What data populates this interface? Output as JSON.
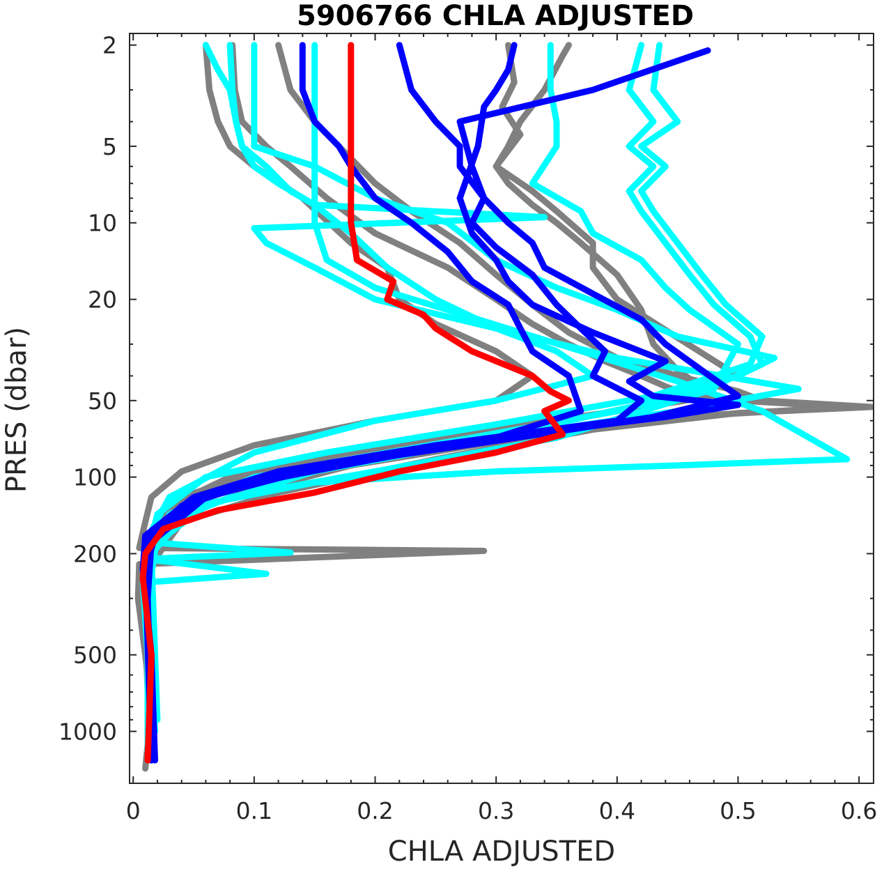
{
  "chart_data": {
    "type": "line",
    "title": "5906766  CHLA ADJUSTED",
    "xlabel": "CHLA ADJUSTED",
    "ylabel": "PRES (dbar)",
    "xlim": [
      -0.003,
      0.612
    ],
    "ylim": [
      1.8,
      1600
    ],
    "y_scale": "log",
    "y_reversed": true,
    "xticks": [
      0,
      0.1,
      0.2,
      0.3,
      0.4,
      0.5,
      0.6
    ],
    "xtick_labels": [
      "0",
      "0.1",
      "0.2",
      "0.3",
      "0.4",
      "0.5",
      "0.6"
    ],
    "yticks": [
      2,
      5,
      10,
      20,
      50,
      100,
      200,
      500,
      1000
    ],
    "ytick_labels": [
      "2",
      "5",
      "10",
      "20",
      "50",
      "100",
      "200",
      "500",
      "1000"
    ],
    "grid": false,
    "series": [
      {
        "color": "#808080",
        "x": [
          0.06,
          0.063,
          0.07,
          0.08,
          0.1,
          0.14,
          0.18,
          0.21,
          0.22,
          0.25,
          0.3,
          0.33,
          0.3,
          0.2,
          0.1,
          0.04,
          0.015,
          0.01,
          0.005,
          0.29,
          0.005,
          0.004,
          0.01,
          0.015,
          0.01
        ],
        "y": [
          2,
          3,
          4,
          5,
          6,
          8,
          12,
          15,
          20,
          25,
          32,
          40,
          50,
          60,
          75,
          95,
          120,
          150,
          190,
          195,
          220,
          300,
          500,
          800,
          1400
        ]
      },
      {
        "color": "#808080",
        "x": [
          0.082,
          0.084,
          0.09,
          0.11,
          0.13,
          0.16,
          0.2,
          0.26,
          0.3,
          0.33,
          0.36,
          0.39,
          0.42,
          0.44,
          0.46,
          0.5,
          0.59,
          0.45,
          0.32,
          0.18,
          0.08,
          0.03,
          0.012,
          0.01,
          0.014
        ],
        "y": [
          2,
          3,
          4,
          5,
          6,
          8,
          11,
          15,
          20,
          25,
          30,
          35,
          40,
          44,
          48,
          50,
          53,
          58,
          70,
          90,
          120,
          150,
          200,
          400,
          1200
        ]
      },
      {
        "color": "#808080",
        "x": [
          0.12,
          0.13,
          0.15,
          0.17,
          0.2,
          0.23,
          0.27,
          0.3,
          0.33,
          0.36,
          0.4,
          0.45,
          0.5,
          0.52,
          0.61,
          0.5,
          0.38,
          0.25,
          0.12,
          0.04,
          0.015,
          0.015
        ],
        "y": [
          2,
          3,
          4,
          5,
          7,
          9,
          12,
          16,
          21,
          27,
          34,
          40,
          46,
          50,
          53,
          56,
          65,
          85,
          115,
          150,
          220,
          1300
        ]
      },
      {
        "color": "#808080",
        "x": [
          0.31,
          0.315,
          0.305,
          0.32,
          0.3,
          0.33,
          0.35,
          0.38,
          0.38,
          0.4,
          0.5,
          0.4,
          0.25,
          0.12,
          0.04,
          0.012,
          0.014
        ],
        "y": [
          2,
          2.8,
          3.5,
          4.5,
          6,
          7.5,
          9,
          12,
          15,
          20,
          40,
          55,
          70,
          90,
          120,
          200,
          1200
        ]
      },
      {
        "color": "#808080",
        "x": [
          0.36,
          0.355,
          0.34,
          0.32,
          0.31,
          0.3,
          0.31,
          0.33,
          0.35,
          0.37,
          0.4,
          0.42,
          0.43,
          0.45,
          0.48,
          0.4,
          0.3,
          0.18,
          0.08,
          0.03,
          0.012,
          0.014
        ],
        "y": [
          2,
          2.2,
          3,
          4,
          5,
          6,
          7,
          8.5,
          10,
          12,
          16,
          22,
          30,
          38,
          48,
          55,
          65,
          80,
          100,
          130,
          200,
          1100
        ]
      },
      {
        "color": "#00ffff",
        "x": [
          0.06,
          0.07,
          0.08,
          0.085,
          0.09,
          0.1,
          0.12,
          0.15,
          0.18,
          0.21,
          0.25,
          0.3,
          0.35,
          0.38,
          0.3,
          0.2,
          0.1,
          0.03,
          0.01,
          0.13,
          0.01,
          0.11,
          0.008,
          0.012,
          0.015
        ],
        "y": [
          2,
          2.5,
          3,
          4,
          5,
          6,
          7,
          8.5,
          11,
          15,
          20,
          26,
          32,
          40,
          50,
          60,
          80,
          120,
          180,
          198,
          210,
          240,
          260,
          500,
          1300
        ]
      },
      {
        "color": "#00ffff",
        "x": [
          0.08,
          0.082,
          0.085,
          0.09,
          0.11,
          0.13,
          0.15,
          0.34,
          0.1,
          0.11,
          0.15,
          0.2,
          0.3,
          0.4,
          0.55,
          0.45,
          0.3,
          0.15,
          0.06,
          0.02,
          0.01,
          0.015
        ],
        "y": [
          2,
          3,
          4,
          5,
          6,
          7.5,
          8.5,
          9.5,
          10.5,
          12,
          15,
          20,
          26,
          34,
          45,
          55,
          70,
          95,
          130,
          180,
          250,
          1200
        ]
      },
      {
        "color": "#00ffff",
        "x": [
          0.1,
          0.1,
          0.1,
          0.1,
          0.15,
          0.2,
          0.26,
          0.3,
          0.35,
          0.4,
          0.45,
          0.53,
          0.5,
          0.4,
          0.28,
          0.15,
          0.06,
          0.02,
          0.012,
          0.018
        ],
        "y": [
          2,
          3,
          4,
          5,
          6,
          8,
          10,
          14,
          18,
          22,
          28,
          34,
          40,
          55,
          70,
          90,
          120,
          170,
          300,
          1000
        ]
      },
      {
        "color": "#00ffff",
        "x": [
          0.15,
          0.15,
          0.15,
          0.15,
          0.15,
          0.15,
          0.16,
          0.2,
          0.26,
          0.32,
          0.38,
          0.45,
          0.52,
          0.59,
          0.45,
          0.3,
          0.15,
          0.05,
          0.015,
          0.02
        ],
        "y": [
          2,
          3,
          4,
          5,
          7,
          10,
          14,
          18,
          22,
          27,
          33,
          42,
          55,
          85,
          90,
          95,
          105,
          130,
          200,
          900
        ]
      },
      {
        "color": "#00ffff",
        "x": [
          0.345,
          0.345,
          0.35,
          0.35,
          0.33,
          0.37,
          0.38,
          0.42,
          0.44,
          0.46,
          0.5,
          0.48,
          0.35,
          0.2,
          0.08,
          0.03,
          0.012,
          0.012
        ],
        "y": [
          2,
          3,
          4,
          5,
          7,
          9,
          11,
          14,
          18,
          22,
          30,
          45,
          70,
          95,
          120,
          150,
          200,
          1200
        ]
      },
      {
        "color": "#00ffff",
        "x": [
          0.42,
          0.41,
          0.43,
          0.41,
          0.43,
          0.41,
          0.42,
          0.44,
          0.46,
          0.48,
          0.51,
          0.52,
          0.47,
          0.36,
          0.22,
          0.1,
          0.03,
          0.012,
          0.015
        ],
        "y": [
          2,
          3,
          4,
          5,
          6,
          7.5,
          9,
          12,
          16,
          21,
          28,
          36,
          46,
          60,
          80,
          100,
          140,
          200,
          1200
        ]
      },
      {
        "color": "#00ffff",
        "x": [
          0.435,
          0.43,
          0.45,
          0.42,
          0.44,
          0.42,
          0.43,
          0.45,
          0.47,
          0.49,
          0.52,
          0.51,
          0.43,
          0.3,
          0.16,
          0.06,
          0.02,
          0.012,
          0.014
        ],
        "y": [
          2,
          3,
          4,
          5,
          6,
          7.5,
          9,
          12,
          16,
          21,
          28,
          36,
          48,
          62,
          80,
          100,
          140,
          200,
          1200
        ]
      },
      {
        "color": "#0000ff",
        "x": [
          0.14,
          0.14,
          0.15,
          0.17,
          0.18,
          0.2,
          0.23,
          0.26,
          0.28,
          0.31,
          0.32,
          0.33,
          0.36,
          0.37,
          0.3,
          0.2,
          0.1,
          0.04,
          0.01,
          0.008,
          0.015,
          0.018
        ],
        "y": [
          2,
          3,
          4,
          5,
          6,
          8,
          10,
          13,
          17,
          21,
          26,
          32,
          40,
          55,
          70,
          85,
          105,
          130,
          180,
          230,
          500,
          1300
        ]
      },
      {
        "color": "#0000ff",
        "x": [
          0.22,
          0.23,
          0.25,
          0.27,
          0.27,
          0.29,
          0.28,
          0.3,
          0.33,
          0.35,
          0.37,
          0.39,
          0.38,
          0.42,
          0.4,
          0.25,
          0.12,
          0.05,
          0.01,
          0.008,
          0.015,
          0.015
        ],
        "y": [
          2,
          3,
          4,
          5,
          6,
          8,
          10,
          12.5,
          16,
          21,
          26,
          32,
          40,
          50,
          60,
          75,
          95,
          120,
          170,
          230,
          500,
          1300
        ]
      },
      {
        "color": "#0000ff",
        "x": [
          0.315,
          0.31,
          0.3,
          0.29,
          0.285,
          0.27,
          0.28,
          0.3,
          0.31,
          0.33,
          0.38,
          0.44,
          0.41,
          0.43,
          0.5,
          0.44,
          0.3,
          0.15,
          0.06,
          0.02,
          0.01,
          0.015
        ],
        "y": [
          2,
          2.5,
          3,
          3.5,
          5,
          8,
          11,
          14,
          17,
          21,
          27,
          35,
          42,
          48,
          52,
          58,
          70,
          90,
          120,
          160,
          230,
          1300
        ]
      },
      {
        "color": "#0000ff",
        "x": [
          0.475,
          0.38,
          0.27,
          0.28,
          0.29,
          0.31,
          0.33,
          0.34,
          0.38,
          0.42,
          0.44,
          0.47,
          0.5,
          0.43,
          0.3,
          0.16,
          0.06,
          0.015,
          0.012,
          0.016
        ],
        "y": [
          2.1,
          3,
          4,
          6,
          8,
          10,
          12,
          15,
          19,
          24,
          30,
          38,
          48,
          58,
          72,
          90,
          120,
          180,
          300,
          1200
        ]
      },
      {
        "color": "#ff0000",
        "x": [
          0.18,
          0.18,
          0.18,
          0.18,
          0.18,
          0.18,
          0.185,
          0.215,
          0.21,
          0.24,
          0.25,
          0.28,
          0.33,
          0.345,
          0.36,
          0.34,
          0.355,
          0.3,
          0.22,
          0.15,
          0.07,
          0.025,
          0.01,
          0.008,
          0.015,
          0.012
        ],
        "y": [
          2,
          3,
          4,
          5,
          7,
          10,
          14,
          17,
          20,
          23,
          26,
          32,
          40,
          46,
          50,
          55,
          68,
          80,
          95,
          115,
          135,
          160,
          200,
          250,
          500,
          1300
        ]
      }
    ]
  }
}
